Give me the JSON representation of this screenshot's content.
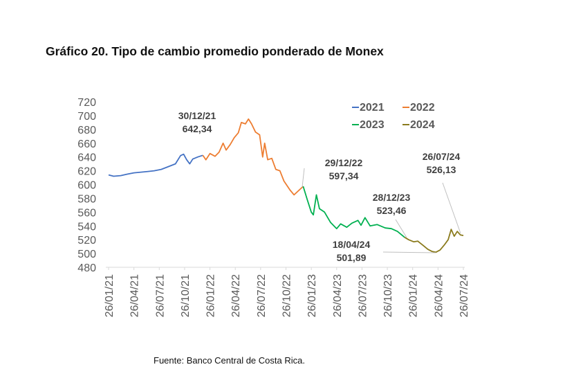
{
  "title": "Gráfico 20. Tipo de cambio promedio ponderado de Monex",
  "source": "Fuente: Banco Central de Costa Rica.",
  "chart_data": {
    "type": "line",
    "title": "Gráfico 20. Tipo de cambio promedio ponderado de Monex",
    "xlabel": "",
    "ylabel": "",
    "x_units": "decimal year",
    "xlim": [
      2021.07,
      2024.57
    ],
    "ylim": [
      480,
      720
    ],
    "yticks": [
      480,
      500,
      520,
      540,
      560,
      580,
      600,
      620,
      640,
      660,
      680,
      700,
      720
    ],
    "xtick_labels": [
      "26/01/21",
      "26/04/21",
      "26/07/21",
      "26/10/21",
      "26/01/22",
      "26/04/22",
      "26/07/22",
      "26/10/22",
      "26/01/23",
      "26/04/23",
      "26/07/23",
      "26/10/23",
      "26/01/24",
      "26/04/24",
      "26/07/24"
    ],
    "grid": false,
    "legend_position": "top-right",
    "series": [
      {
        "name": "2021",
        "color": "#4472C4",
        "points": [
          [
            2021.07,
            614
          ],
          [
            2021.12,
            612
          ],
          [
            2021.19,
            613
          ],
          [
            2021.25,
            615
          ],
          [
            2021.32,
            617
          ],
          [
            2021.39,
            618
          ],
          [
            2021.46,
            619
          ],
          [
            2021.52,
            620
          ],
          [
            2021.59,
            622
          ],
          [
            2021.66,
            626
          ],
          [
            2021.73,
            630
          ],
          [
            2021.78,
            642
          ],
          [
            2021.81,
            644
          ],
          [
            2021.84,
            636
          ],
          [
            2021.87,
            630
          ],
          [
            2021.9,
            637
          ],
          [
            2021.95,
            640
          ],
          [
            2022.0,
            642.34
          ]
        ]
      },
      {
        "name": "2022",
        "color": "#ED7D31",
        "points": [
          [
            2022.0,
            642.34
          ],
          [
            2022.03,
            636
          ],
          [
            2022.07,
            645
          ],
          [
            2022.12,
            641
          ],
          [
            2022.16,
            647
          ],
          [
            2022.2,
            660
          ],
          [
            2022.23,
            650
          ],
          [
            2022.27,
            658
          ],
          [
            2022.31,
            668
          ],
          [
            2022.35,
            675
          ],
          [
            2022.38,
            690
          ],
          [
            2022.42,
            688
          ],
          [
            2022.45,
            695
          ],
          [
            2022.48,
            688
          ],
          [
            2022.52,
            676
          ],
          [
            2022.56,
            672
          ],
          [
            2022.59,
            640
          ],
          [
            2022.61,
            660
          ],
          [
            2022.64,
            636
          ],
          [
            2022.68,
            638
          ],
          [
            2022.72,
            622
          ],
          [
            2022.76,
            620
          ],
          [
            2022.8,
            605
          ],
          [
            2022.86,
            592
          ],
          [
            2022.9,
            585
          ],
          [
            2022.99,
            597.34
          ]
        ]
      },
      {
        "name": "2023",
        "color": "#00B050",
        "points": [
          [
            2022.99,
            597.34
          ],
          [
            2023.03,
            578
          ],
          [
            2023.07,
            560
          ],
          [
            2023.09,
            556
          ],
          [
            2023.12,
            585
          ],
          [
            2023.15,
            565
          ],
          [
            2023.2,
            560
          ],
          [
            2023.26,
            545
          ],
          [
            2023.32,
            536
          ],
          [
            2023.36,
            543
          ],
          [
            2023.42,
            538
          ],
          [
            2023.47,
            544
          ],
          [
            2023.53,
            548
          ],
          [
            2023.56,
            541
          ],
          [
            2023.6,
            552
          ],
          [
            2023.65,
            540
          ],
          [
            2023.72,
            542
          ],
          [
            2023.8,
            537
          ],
          [
            2023.86,
            536
          ],
          [
            2023.92,
            532
          ],
          [
            2023.99,
            523.46
          ]
        ]
      },
      {
        "name": "2024",
        "color": "#8A7A1C",
        "points": [
          [
            2023.99,
            523.46
          ],
          [
            2024.03,
            520
          ],
          [
            2024.08,
            517
          ],
          [
            2024.12,
            518
          ],
          [
            2024.17,
            512
          ],
          [
            2024.22,
            506
          ],
          [
            2024.26,
            503
          ],
          [
            2024.3,
            501.89
          ],
          [
            2024.34,
            505
          ],
          [
            2024.38,
            512
          ],
          [
            2024.42,
            520
          ],
          [
            2024.45,
            535
          ],
          [
            2024.48,
            525
          ],
          [
            2024.51,
            532
          ],
          [
            2024.54,
            527
          ],
          [
            2024.57,
            526.13
          ]
        ]
      }
    ],
    "annotations": [
      {
        "date": "30/12/21",
        "value": "642,34"
      },
      {
        "date": "29/12/22",
        "value": "597,34"
      },
      {
        "date": "28/12/23",
        "value": "523,46"
      },
      {
        "date": "18/04/24",
        "value": "501,89"
      },
      {
        "date": "26/07/24",
        "value": "526,13"
      }
    ]
  }
}
